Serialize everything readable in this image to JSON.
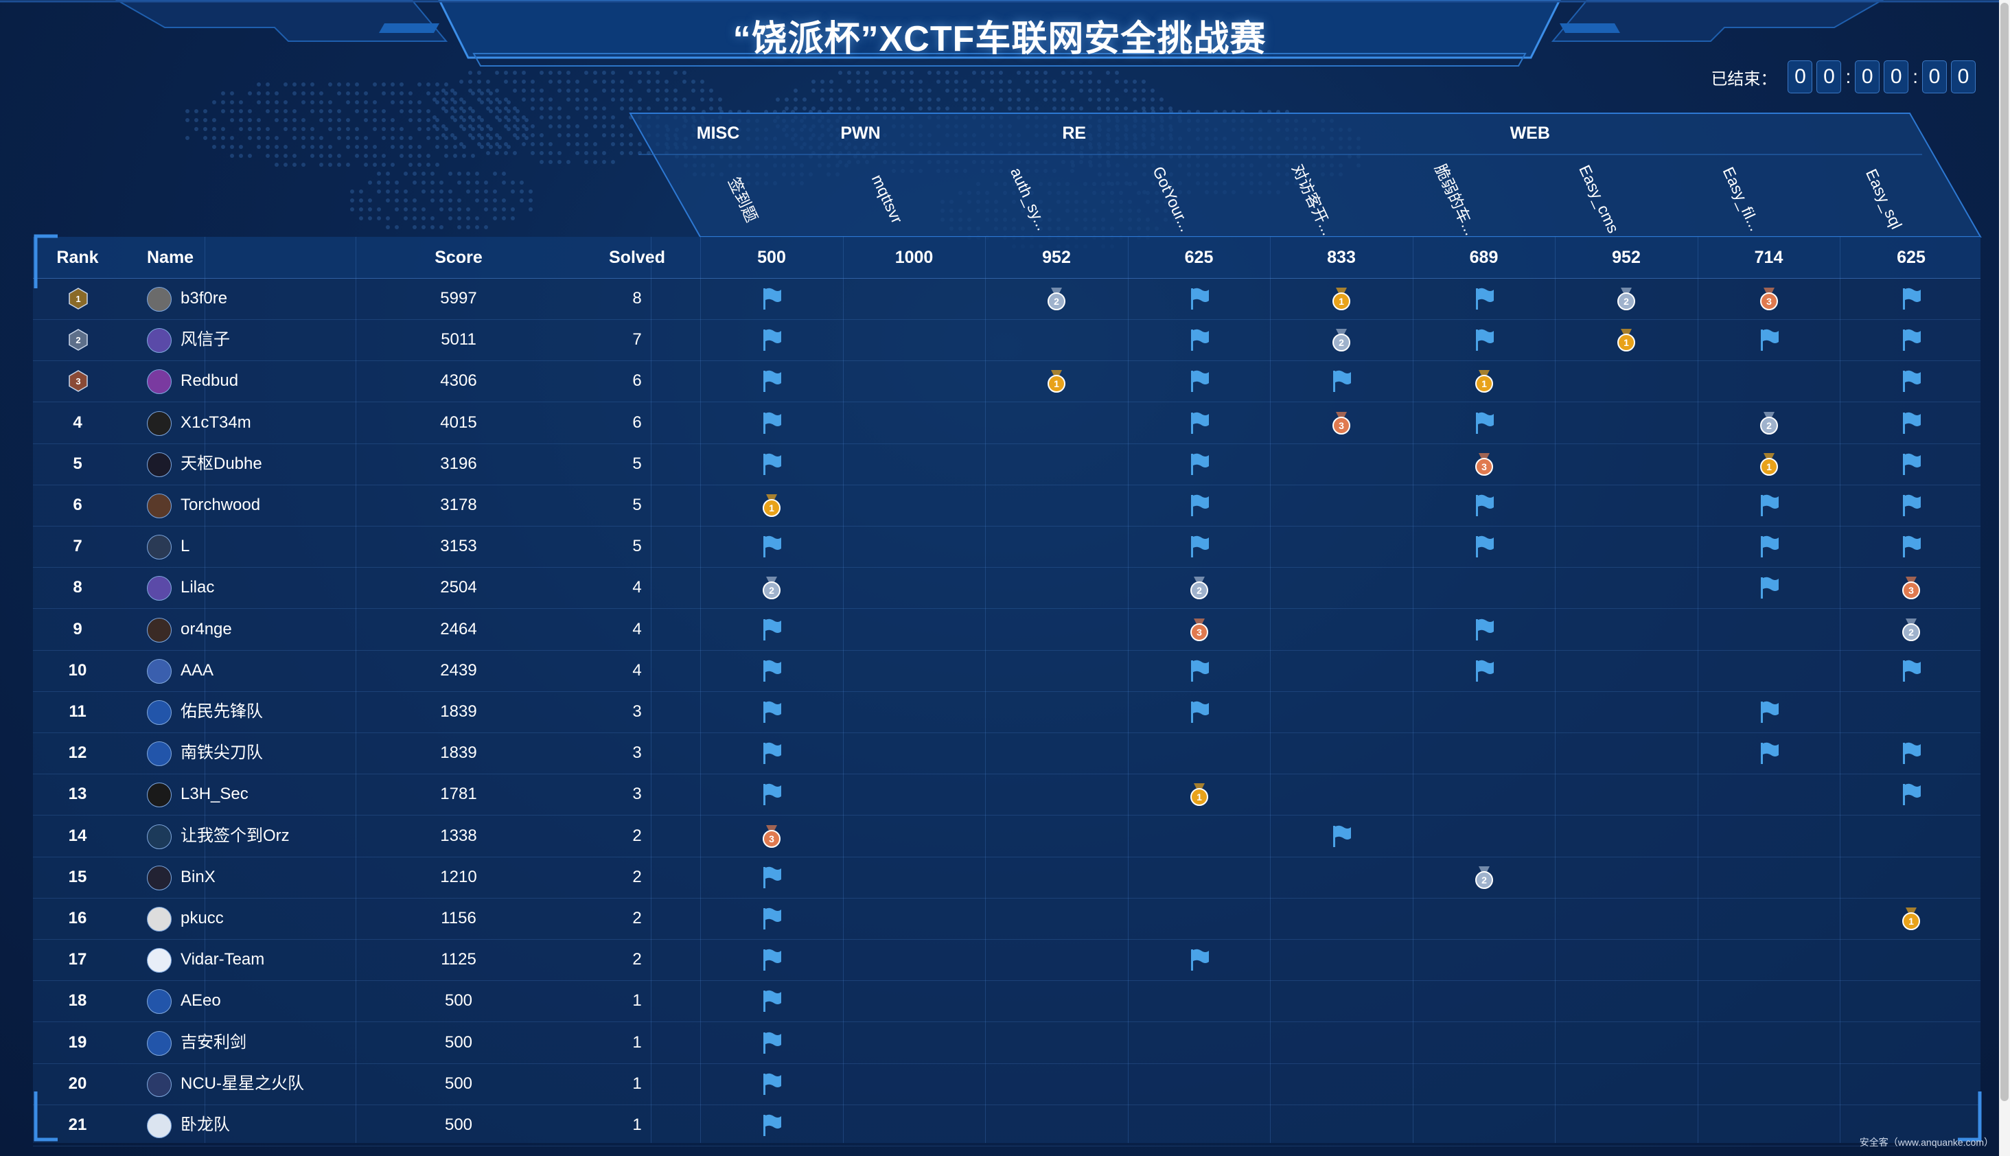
{
  "title": "“饶派杯”XCTF车联网安全挑战赛",
  "timer": {
    "label": "已结束：",
    "digits": [
      "0",
      "0",
      "0",
      "0",
      "0",
      "0"
    ]
  },
  "categories": [
    {
      "name": "MISC",
      "center": 0
    },
    {
      "name": "PWN",
      "center": 1
    },
    {
      "name": "RE",
      "center": 2.5
    },
    {
      "name": "WEB",
      "center": 5.7
    }
  ],
  "challenges": [
    {
      "name": "签到题",
      "score": "500"
    },
    {
      "name": "mqttsvr",
      "score": "1000"
    },
    {
      "name": "auth_sy...",
      "score": "952"
    },
    {
      "name": "GotYour...",
      "score": "625"
    },
    {
      "name": "对访客开...",
      "score": "833"
    },
    {
      "name": "脆弱的车...",
      "score": "689"
    },
    {
      "name": "Easy_cms",
      "score": "952"
    },
    {
      "name": "Easy_fil...",
      "score": "714"
    },
    {
      "name": "Easy_sql",
      "score": "625"
    }
  ],
  "headers": {
    "rank": "Rank",
    "name": "Name",
    "score": "Score",
    "solved": "Solved"
  },
  "colors": {
    "flag": "#4aa3e8",
    "gold": "#e8a21a",
    "silver": "#9fb2cc",
    "bronze": "#e07a4f"
  },
  "teams": [
    {
      "rank": "1",
      "name": "b3f0re",
      "score": "5997",
      "solved": "8",
      "marks": [
        "flag",
        "",
        "2",
        "flag",
        "1",
        "flag",
        "2",
        "3",
        "flag"
      ]
    },
    {
      "rank": "2",
      "name": "风信子",
      "score": "5011",
      "solved": "7",
      "marks": [
        "flag",
        "",
        "",
        "flag",
        "2",
        "flag",
        "1",
        "flag",
        "flag"
      ]
    },
    {
      "rank": "3",
      "name": "Redbud",
      "score": "4306",
      "solved": "6",
      "marks": [
        "flag",
        "",
        "1",
        "flag",
        "flag",
        "1",
        "",
        "",
        "flag"
      ]
    },
    {
      "rank": "4",
      "name": "X1cT34m",
      "score": "4015",
      "solved": "6",
      "marks": [
        "flag",
        "",
        "",
        "flag",
        "3",
        "flag",
        "",
        "2",
        "flag"
      ]
    },
    {
      "rank": "5",
      "name": "天枢Dubhe",
      "score": "3196",
      "solved": "5",
      "marks": [
        "flag",
        "",
        "",
        "flag",
        "",
        "3",
        "",
        "1",
        "flag"
      ]
    },
    {
      "rank": "6",
      "name": "Torchwood",
      "score": "3178",
      "solved": "5",
      "marks": [
        "1",
        "",
        "",
        "flag",
        "",
        "flag",
        "",
        "flag",
        "flag"
      ]
    },
    {
      "rank": "7",
      "name": "L",
      "score": "3153",
      "solved": "5",
      "marks": [
        "flag",
        "",
        "",
        "flag",
        "",
        "flag",
        "",
        "flag",
        "flag"
      ]
    },
    {
      "rank": "8",
      "name": "Lilac",
      "score": "2504",
      "solved": "4",
      "marks": [
        "2",
        "",
        "",
        "2",
        "",
        "",
        "",
        "flag",
        "3"
      ]
    },
    {
      "rank": "9",
      "name": "or4nge",
      "score": "2464",
      "solved": "4",
      "marks": [
        "flag",
        "",
        "",
        "3",
        "",
        "flag",
        "",
        "",
        "2"
      ]
    },
    {
      "rank": "10",
      "name": "AAA",
      "score": "2439",
      "solved": "4",
      "marks": [
        "flag",
        "",
        "",
        "flag",
        "",
        "flag",
        "",
        "",
        "flag"
      ]
    },
    {
      "rank": "11",
      "name": "佑民先锋队",
      "score": "1839",
      "solved": "3",
      "marks": [
        "flag",
        "",
        "",
        "flag",
        "",
        "",
        "",
        "flag",
        ""
      ]
    },
    {
      "rank": "12",
      "name": "南铁尖刀队",
      "score": "1839",
      "solved": "3",
      "marks": [
        "flag",
        "",
        "",
        "",
        "",
        "",
        "",
        "flag",
        "flag"
      ]
    },
    {
      "rank": "13",
      "name": "L3H_Sec",
      "score": "1781",
      "solved": "3",
      "marks": [
        "flag",
        "",
        "",
        "1",
        "",
        "",
        "",
        "",
        "flag"
      ]
    },
    {
      "rank": "14",
      "name": "让我签个到Orz",
      "score": "1338",
      "solved": "2",
      "marks": [
        "3",
        "",
        "",
        "",
        "flag",
        "",
        "",
        "",
        ""
      ]
    },
    {
      "rank": "15",
      "name": "BinX",
      "score": "1210",
      "solved": "2",
      "marks": [
        "flag",
        "",
        "",
        "",
        "",
        "2",
        "",
        "",
        ""
      ]
    },
    {
      "rank": "16",
      "name": "pkucc",
      "score": "1156",
      "solved": "2",
      "marks": [
        "flag",
        "",
        "",
        "",
        "",
        "",
        "",
        "",
        "1"
      ]
    },
    {
      "rank": "17",
      "name": "Vidar-Team",
      "score": "1125",
      "solved": "2",
      "marks": [
        "flag",
        "",
        "",
        "flag",
        "",
        "",
        "",
        "",
        ""
      ]
    },
    {
      "rank": "18",
      "name": "AEeo",
      "score": "500",
      "solved": "1",
      "marks": [
        "flag",
        "",
        "",
        "",
        "",
        "",
        "",
        "",
        ""
      ]
    },
    {
      "rank": "19",
      "name": "吉安利剑",
      "score": "500",
      "solved": "1",
      "marks": [
        "flag",
        "",
        "",
        "",
        "",
        "",
        "",
        "",
        ""
      ]
    },
    {
      "rank": "20",
      "name": "NCU-星星之火队",
      "score": "500",
      "solved": "1",
      "marks": [
        "flag",
        "",
        "",
        "",
        "",
        "",
        "",
        "",
        ""
      ]
    },
    {
      "rank": "21",
      "name": "卧龙队",
      "score": "500",
      "solved": "1",
      "marks": [
        "flag",
        "",
        "",
        "",
        "",
        "",
        "",
        "",
        ""
      ]
    }
  ],
  "watermark": "安全客（www.anquanke.com）"
}
